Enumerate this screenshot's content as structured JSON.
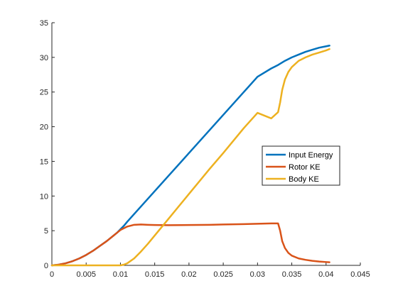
{
  "chart_data": {
    "type": "line",
    "title": "",
    "xlabel": "",
    "ylabel": "",
    "xlim": [
      0,
      0.045
    ],
    "ylim": [
      0,
      35
    ],
    "x_ticks": [
      0,
      0.005,
      0.01,
      0.015,
      0.02,
      0.025,
      0.03,
      0.035,
      0.04,
      0.045
    ],
    "x_tick_labels": [
      "0",
      "0.005",
      "0.01",
      "0.015",
      "0.02",
      "0.025",
      "0.03",
      "0.035",
      "0.04",
      "0.045"
    ],
    "y_ticks": [
      0,
      5,
      10,
      15,
      20,
      25,
      30,
      35
    ],
    "y_tick_labels": [
      "0",
      "5",
      "10",
      "15",
      "20",
      "25",
      "30",
      "35"
    ],
    "grid": false,
    "legend_position": "right",
    "series": [
      {
        "name": "Input Energy",
        "color": "#0072BD",
        "x": [
          0,
          0.001,
          0.002,
          0.003,
          0.004,
          0.005,
          0.006,
          0.007,
          0.008,
          0.009,
          0.0095,
          0.01,
          0.0105,
          0.011,
          0.012,
          0.013,
          0.015,
          0.017,
          0.02,
          0.023,
          0.025,
          0.028,
          0.03,
          0.032,
          0.033,
          0.034,
          0.035,
          0.036,
          0.037,
          0.038,
          0.039,
          0.04,
          0.0405
        ],
        "y": [
          0,
          0.1,
          0.3,
          0.6,
          1.0,
          1.5,
          2.1,
          2.8,
          3.5,
          4.3,
          4.7,
          5.2,
          5.7,
          6.3,
          7.4,
          8.5,
          10.7,
          12.9,
          16.2,
          19.5,
          21.7,
          25.0,
          27.2,
          28.4,
          28.9,
          29.5,
          30.0,
          30.4,
          30.8,
          31.1,
          31.4,
          31.6,
          31.7
        ]
      },
      {
        "name": "Rotor KE",
        "color": "#D95319",
        "x": [
          0,
          0.001,
          0.002,
          0.003,
          0.004,
          0.005,
          0.006,
          0.007,
          0.008,
          0.009,
          0.0095,
          0.01,
          0.011,
          0.012,
          0.013,
          0.014,
          0.015,
          0.017,
          0.02,
          0.023,
          0.025,
          0.028,
          0.03,
          0.032,
          0.033,
          0.0333,
          0.0336,
          0.034,
          0.0345,
          0.035,
          0.036,
          0.037,
          0.038,
          0.039,
          0.04,
          0.0405
        ],
        "y": [
          0,
          0.1,
          0.3,
          0.6,
          1.0,
          1.5,
          2.1,
          2.8,
          3.5,
          4.3,
          4.7,
          5.1,
          5.6,
          5.85,
          5.9,
          5.85,
          5.82,
          5.8,
          5.82,
          5.85,
          5.9,
          5.95,
          6.0,
          6.05,
          6.05,
          5.0,
          3.5,
          2.5,
          1.8,
          1.4,
          1.0,
          0.8,
          0.65,
          0.55,
          0.48,
          0.45
        ]
      },
      {
        "name": "Body KE",
        "color": "#EDB120",
        "x": [
          0,
          0.005,
          0.01,
          0.0105,
          0.011,
          0.012,
          0.013,
          0.014,
          0.015,
          0.017,
          0.02,
          0.023,
          0.025,
          0.028,
          0.03,
          0.032,
          0.033,
          0.0333,
          0.0336,
          0.034,
          0.0345,
          0.035,
          0.036,
          0.037,
          0.038,
          0.039,
          0.04,
          0.0405
        ],
        "y": [
          0,
          0,
          0,
          0.1,
          0.3,
          1.0,
          2.0,
          3.1,
          4.3,
          6.7,
          10.3,
          13.9,
          16.2,
          19.8,
          22.0,
          21.2,
          22.1,
          23.5,
          25.3,
          26.8,
          27.9,
          28.6,
          29.5,
          30.0,
          30.4,
          30.7,
          31.0,
          31.2
        ]
      }
    ]
  }
}
